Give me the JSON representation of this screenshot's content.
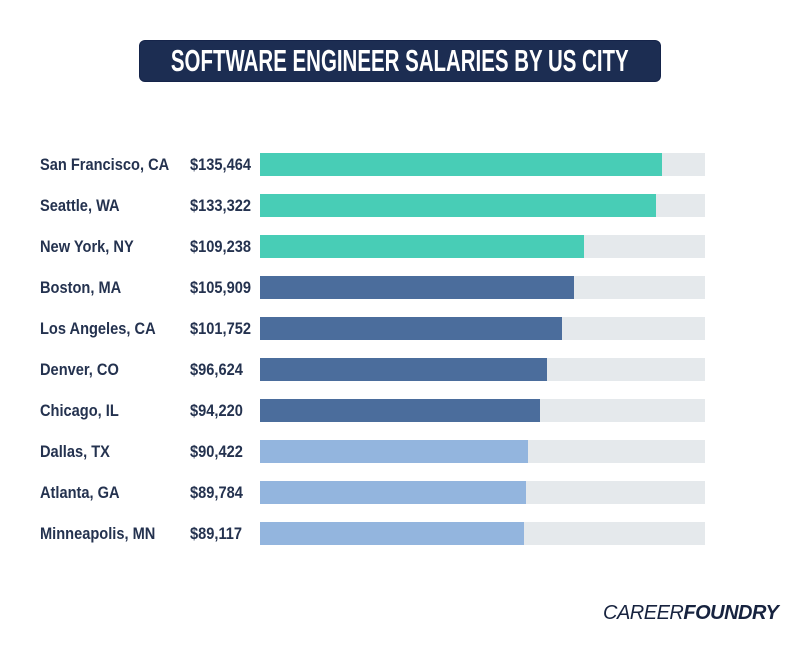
{
  "title_banner": {
    "text": "SOFTWARE ENGINEER SALARIES BY US CITY",
    "bg_color": "#1c2d52",
    "text_color": "#ffffff"
  },
  "chart_data": {
    "type": "bar",
    "orientation": "horizontal",
    "title": "SOFTWARE ENGINEER SALARIES BY US CITY",
    "categories": [
      "San Francisco, CA",
      "Seattle, WA",
      "New York, NY",
      "Boston, MA",
      "Los Angeles, CA",
      "Denver, CO",
      "Chicago, IL",
      "Dallas, TX",
      "Atlanta, GA",
      "Minneapolis, MN"
    ],
    "values": [
      135464,
      133322,
      109238,
      105909,
      101752,
      96624,
      94220,
      90422,
      89784,
      89117
    ],
    "value_labels": [
      "$135,464",
      "$133,322",
      "$109,238",
      "$105,909",
      "$101,752",
      "$96,624",
      "$94,220",
      "$90,422",
      "$89,784",
      "$89,117"
    ],
    "xlim": [
      0,
      150000
    ],
    "grid": false,
    "legend": "none",
    "colors": {
      "teal": "#48cdb6",
      "steel_blue": "#4b6d9c",
      "light_blue": "#93b5de",
      "track": "#e5e9ec"
    },
    "bar_color_keys": [
      "teal",
      "teal",
      "teal",
      "steel_blue",
      "steel_blue",
      "steel_blue",
      "steel_blue",
      "light_blue",
      "light_blue",
      "light_blue"
    ]
  },
  "footer": {
    "brand_regular": "CAREER",
    "brand_bold": "FOUNDRY",
    "color": "#17233f"
  }
}
